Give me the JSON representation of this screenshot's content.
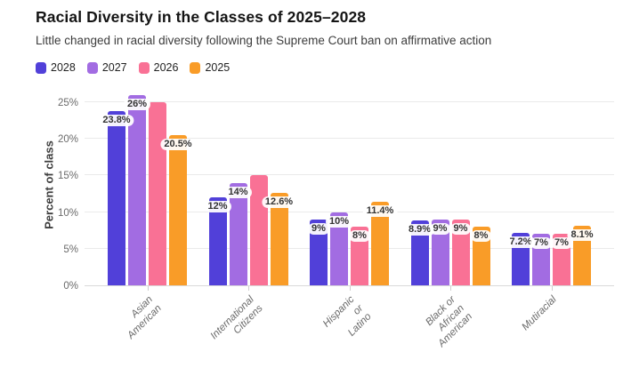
{
  "header": {
    "title": "Racial Diversity in the Classes of 2025–2028",
    "subtitle": "Little changed in racial diversity following the Supreme Court ban on affirmative action"
  },
  "chart_data": {
    "type": "bar",
    "title": "Racial Diversity in the Classes of 2025–2028",
    "subtitle": "Little changed in racial diversity following the Supreme Court ban on affirmative action",
    "xlabel": "",
    "ylabel": "Percent of class",
    "categories": [
      "Asian American",
      "International\nCitizens",
      "Hispanic or Latino",
      "Black or African\nAmerican",
      "Mutiracial"
    ],
    "series": [
      {
        "name": "2028",
        "color": "#5140d9",
        "values": [
          23.8,
          12,
          9,
          8.9,
          7.2
        ],
        "labels": [
          "23.8%",
          "12%",
          "9%",
          "8.9%",
          "7.2%"
        ]
      },
      {
        "name": "2027",
        "color": "#a26ce2",
        "values": [
          26,
          14,
          10,
          9,
          7
        ],
        "labels": [
          "26%",
          "14%",
          "10%",
          "9%",
          "7%"
        ]
      },
      {
        "name": "2026",
        "color": "#f97195",
        "values": [
          25,
          15.1,
          8,
          9,
          7
        ],
        "labels": [
          null,
          null,
          "8%",
          "9%",
          "7%"
        ]
      },
      {
        "name": "2025",
        "color": "#f99c28",
        "values": [
          20.5,
          12.6,
          11.4,
          8,
          8.1
        ],
        "labels": [
          "20.5%",
          "12.6%",
          "11.4%",
          "8%",
          "8.1%"
        ]
      }
    ],
    "yticks": [
      {
        "value": 0,
        "label": "0%"
      },
      {
        "value": 5,
        "label": "5%"
      },
      {
        "value": 10,
        "label": "10%"
      },
      {
        "value": 15,
        "label": "15%"
      },
      {
        "value": 20,
        "label": "20%"
      },
      {
        "value": 25,
        "label": "25%"
      }
    ],
    "ylim": [
      0,
      26.5
    ],
    "grid": true,
    "legend_position": "top"
  }
}
